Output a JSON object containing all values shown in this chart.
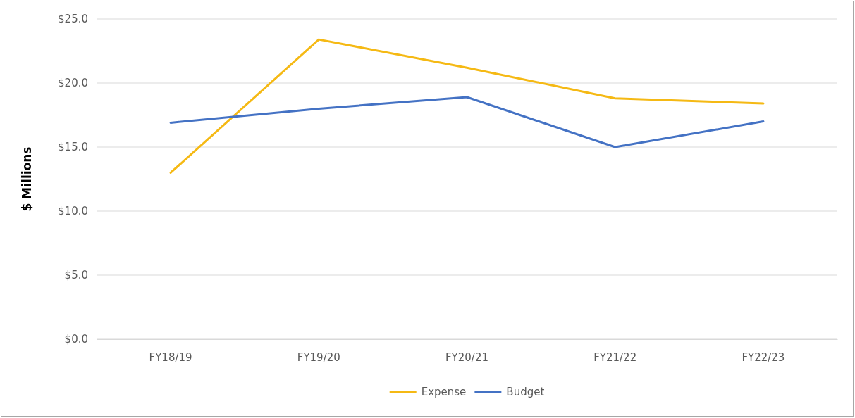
{
  "chart_data": {
    "type": "line",
    "ylabel": "$ Millions",
    "categories": [
      "FY18/19",
      "FY19/20",
      "FY20/21",
      "FY21/22",
      "FY22/23"
    ],
    "series": [
      {
        "name": "Expense",
        "color": "#f5b914",
        "values": [
          13.0,
          23.4,
          21.2,
          18.8,
          18.4
        ]
      },
      {
        "name": "Budget",
        "color": "#4472c4",
        "values": [
          16.9,
          18.0,
          18.9,
          15.0,
          17.0
        ]
      }
    ],
    "ylim": [
      0,
      25
    ],
    "yticks": [
      {
        "value": 0,
        "label": "$0.0"
      },
      {
        "value": 5,
        "label": "$5.0"
      },
      {
        "value": 10,
        "label": "$10.0"
      },
      {
        "value": 15,
        "label": "$15.0"
      },
      {
        "value": 20,
        "label": "$20.0"
      },
      {
        "value": 25,
        "label": "$25.0"
      }
    ],
    "grid": "y",
    "legend": "bottom",
    "marker": "none",
    "line_style": "solid"
  }
}
